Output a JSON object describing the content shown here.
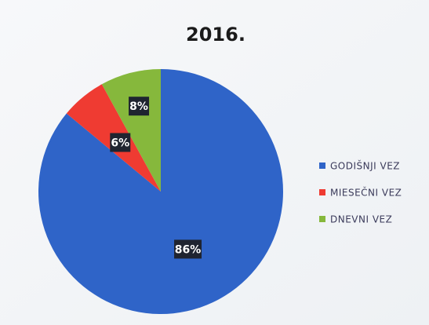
{
  "chart_data": {
    "type": "pie",
    "title": "2016.",
    "categories": [
      "GODIŠNJI VEZ",
      "MIESEČNI VEZ",
      "DNEVNI VEZ"
    ],
    "values": [
      86,
      6,
      8
    ],
    "value_labels": [
      "86%",
      "6%",
      "8%"
    ],
    "colors": [
      "#2f64c8",
      "#ef3b32",
      "#86b83c"
    ],
    "legend": "right"
  }
}
